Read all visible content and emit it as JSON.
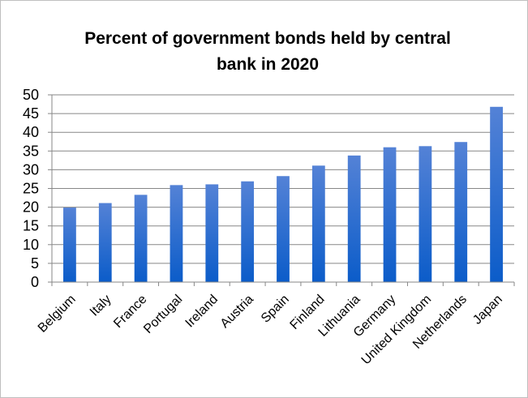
{
  "chart_data": {
    "type": "bar",
    "title": "Percent of government bonds held by central bank in 2020",
    "categories": [
      "Belgium",
      "Italy",
      "France",
      "Portugal",
      "Ireland",
      "Austria",
      "Spain",
      "Finland",
      "Lithuania",
      "Germany",
      "United Kingdom",
      "Netherlands",
      "Japan"
    ],
    "values": [
      19.9,
      21.1,
      23.3,
      25.9,
      26.1,
      26.9,
      28.3,
      31.1,
      33.8,
      36.0,
      36.3,
      37.4,
      46.8
    ],
    "xlabel": "",
    "ylabel": "",
    "ylim": [
      0,
      50
    ],
    "yticks": [
      0,
      5,
      10,
      15,
      20,
      25,
      30,
      35,
      40,
      45,
      50
    ],
    "grid": true,
    "legend": "none",
    "colors": {
      "bar_top": "#5482D6",
      "bar_bottom": "#0B5CC9",
      "grid": "#878787",
      "axis": "#878787"
    }
  }
}
